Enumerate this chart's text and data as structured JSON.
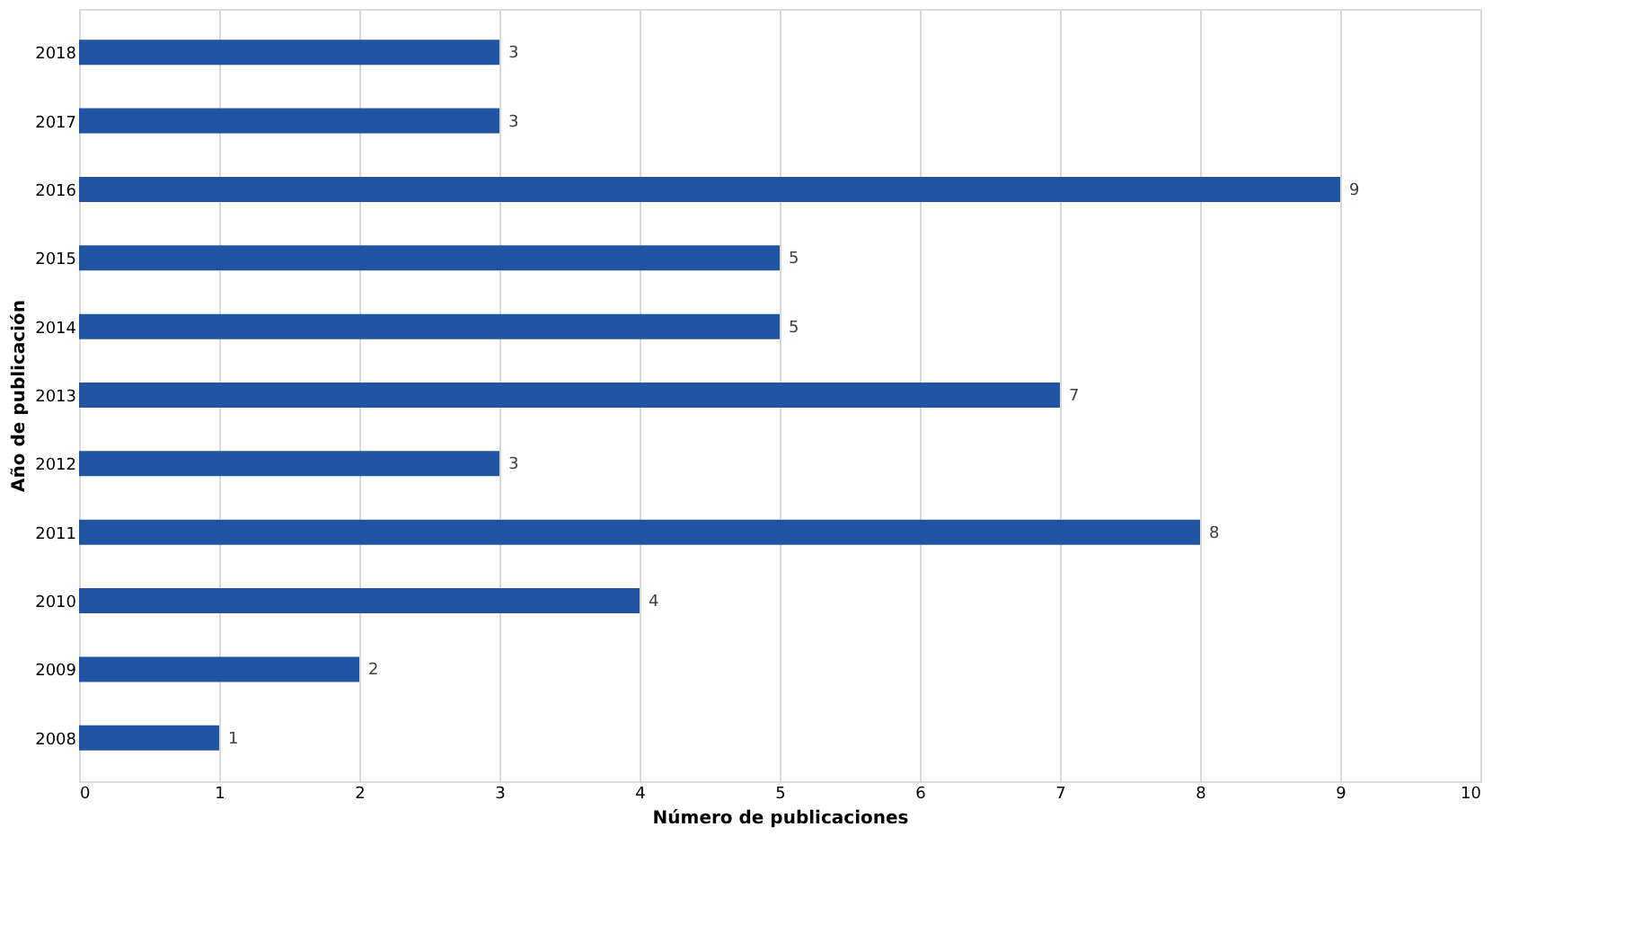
{
  "chart_data": {
    "type": "bar",
    "orientation": "horizontal",
    "xlabel": "Número de publicaciones",
    "ylabel": "Año de publicación",
    "categories": [
      "2018",
      "2017",
      "2016",
      "2015",
      "2014",
      "2013",
      "2012",
      "2011",
      "2010",
      "2009",
      "2008"
    ],
    "values": [
      3,
      3,
      9,
      5,
      5,
      7,
      3,
      8,
      4,
      2,
      1
    ],
    "color": "#2155a3",
    "xlim": [
      0,
      10
    ],
    "xticks": [
      0,
      1,
      2,
      3,
      4,
      5,
      6,
      7,
      8,
      9,
      10
    ],
    "grid": "x",
    "data_labels": true
  }
}
